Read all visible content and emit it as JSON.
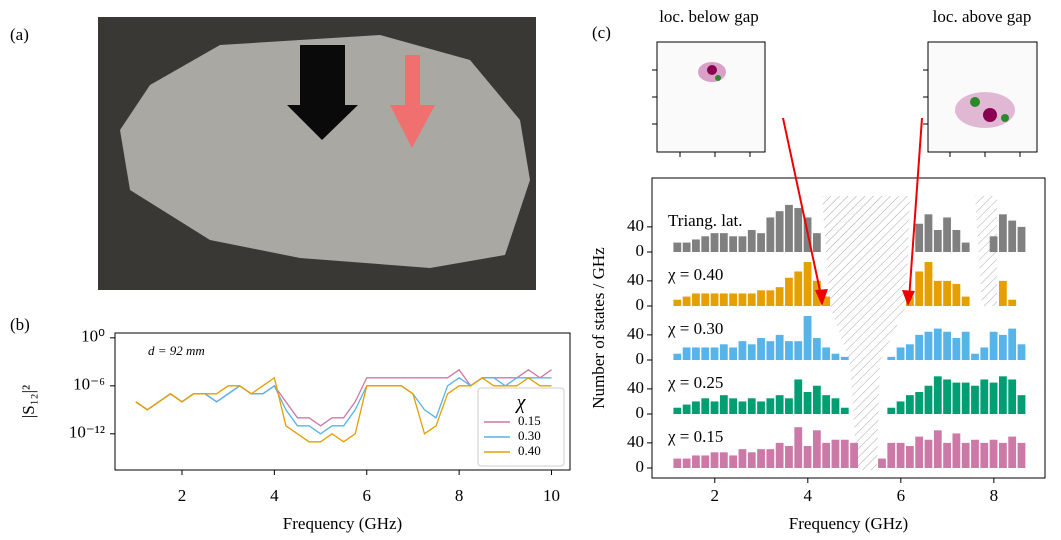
{
  "panel_labels": [
    "(a)",
    "(b)",
    "(c)"
  ],
  "insets": [
    {
      "title": "loc. below gap"
    },
    {
      "title": "loc. above gap"
    }
  ],
  "chart_data": [
    {
      "type": "line",
      "ylabel": "|S₁₂|²",
      "xlabel": "Frequency (GHz)",
      "annotation": "d = 92 mm",
      "log_y": true,
      "legend": "lower right",
      "legend_title": "χ",
      "xlim": [
        0.55,
        10.4
      ],
      "xticks": [
        2,
        4,
        6,
        8,
        10
      ],
      "ylim": [
        3e-17,
        4
      ],
      "yticks": [
        {
          "value": 1,
          "label": "10⁰"
        },
        {
          "value": 1e-06,
          "label": "10⁻⁶"
        },
        {
          "value": 1e-12,
          "label": "10⁻¹²"
        }
      ],
      "x": [
        1.0,
        1.25,
        1.5,
        1.75,
        2.0,
        2.25,
        2.5,
        2.75,
        3.0,
        3.25,
        3.5,
        3.75,
        4.0,
        4.25,
        4.5,
        4.75,
        5.0,
        5.25,
        5.5,
        5.75,
        6.0,
        6.25,
        6.5,
        6.75,
        7.0,
        7.25,
        7.5,
        7.75,
        8.0,
        8.25,
        8.5,
        8.75,
        9.0,
        9.25,
        9.5,
        9.75,
        10.0
      ],
      "series": [
        {
          "name": "0.15",
          "color": "#cc79a7",
          "values": [
            1e-08,
            1e-09,
            1e-08,
            1e-07,
            1e-08,
            1e-07,
            1e-07,
            1e-08,
            1e-07,
            1e-06,
            1e-07,
            1e-07,
            1e-06,
            1e-08,
            1e-10,
            1e-10,
            1e-11,
            1e-10,
            1e-10,
            1e-08,
            1e-05,
            1e-05,
            1e-05,
            1e-05,
            1e-05,
            1e-05,
            1e-05,
            1e-05,
            0.0001,
            1e-06,
            1e-05,
            1e-05,
            1e-05,
            1e-05,
            0.0001,
            1e-05,
            0.0001
          ]
        },
        {
          "name": "0.30",
          "color": "#56b4e9",
          "values": [
            1e-08,
            1e-09,
            1e-08,
            1e-07,
            1e-08,
            1e-07,
            1e-07,
            1e-08,
            1e-07,
            1e-06,
            1e-07,
            1e-07,
            1e-06,
            1e-09,
            1e-11,
            1e-11,
            1e-12,
            1e-11,
            1e-11,
            1e-09,
            1e-06,
            1e-06,
            1e-06,
            1e-06,
            1e-07,
            1e-09,
            1e-10,
            1e-06,
            1e-05,
            1e-06,
            1e-05,
            1e-05,
            1e-06,
            1e-05,
            1e-05,
            1e-05,
            1e-05
          ]
        },
        {
          "name": "0.40",
          "color": "#e69f00",
          "values": [
            1e-08,
            1e-09,
            1e-08,
            1e-07,
            1e-08,
            1e-07,
            1e-07,
            1e-07,
            1e-06,
            1e-06,
            1e-07,
            1e-06,
            1e-05,
            1e-11,
            1e-12,
            1e-13,
            1e-13,
            1e-12,
            1e-13,
            1e-12,
            1e-06,
            1e-06,
            1e-06,
            1e-06,
            1e-07,
            1e-12,
            1e-11,
            1e-07,
            1e-06,
            1e-06,
            1e-05,
            1e-06,
            1e-06,
            1e-06,
            1e-05,
            1e-06,
            1e-06
          ]
        }
      ]
    },
    {
      "type": "histogram",
      "ylabel": "Number of states / GHz",
      "xlabel": "Frequency (GHz)",
      "xlim": [
        0.65,
        9.1
      ],
      "xticks": [
        2,
        4,
        6,
        8
      ],
      "ylim": [
        0,
        86
      ],
      "yticks": [
        0,
        40
      ],
      "bins": [
        1.1,
        1.3,
        1.5,
        1.7,
        1.9,
        2.1,
        2.3,
        2.5,
        2.7,
        2.9,
        3.1,
        3.3,
        3.5,
        3.7,
        3.9,
        4.1,
        4.3,
        4.5,
        4.7,
        4.9,
        5.1,
        5.3,
        5.5,
        5.7,
        5.9,
        6.1,
        6.3,
        6.5,
        6.7,
        6.9,
        7.1,
        7.3,
        7.5,
        7.7,
        7.9,
        8.1,
        8.3,
        8.5,
        8.7
      ],
      "series": [
        {
          "name": "Triang. lat.",
          "color": "#808080",
          "values": [
            15,
            15,
            20,
            25,
            30,
            30,
            25,
            25,
            35,
            30,
            55,
            65,
            75,
            70,
            55,
            30,
            0,
            0,
            0,
            0,
            0,
            0,
            0,
            0,
            0,
            0,
            45,
            60,
            35,
            55,
            35,
            15,
            0,
            0,
            25,
            60,
            50,
            40
          ]
        },
        {
          "name": "χ = 0.40",
          "color": "#e69f00",
          "values": [
            10,
            15,
            20,
            20,
            20,
            20,
            20,
            20,
            20,
            25,
            25,
            30,
            45,
            55,
            70,
            40,
            15,
            0,
            0,
            0,
            0,
            0,
            0,
            0,
            0,
            15,
            55,
            70,
            40,
            40,
            35,
            15,
            0,
            0,
            0,
            40,
            10,
            0
          ]
        },
        {
          "name": "χ = 0.30",
          "color": "#56b4e9",
          "values": [
            10,
            20,
            20,
            20,
            20,
            25,
            20,
            30,
            25,
            35,
            30,
            40,
            30,
            30,
            70,
            35,
            20,
            10,
            5,
            0,
            0,
            0,
            0,
            5,
            20,
            25,
            40,
            45,
            50,
            45,
            35,
            45,
            10,
            20,
            45,
            40,
            50,
            25
          ]
        },
        {
          "name": "χ = 0.25",
          "color": "#009e73",
          "values": [
            10,
            15,
            20,
            25,
            20,
            30,
            25,
            20,
            25,
            20,
            25,
            30,
            25,
            55,
            35,
            45,
            30,
            25,
            10,
            0,
            0,
            0,
            0,
            10,
            20,
            30,
            35,
            45,
            60,
            55,
            50,
            50,
            45,
            55,
            50,
            60,
            55,
            30
          ]
        },
        {
          "name": "χ = 0.15",
          "color": "#cc79a7",
          "values": [
            15,
            15,
            20,
            20,
            25,
            25,
            20,
            30,
            25,
            30,
            30,
            40,
            35,
            65,
            35,
            60,
            40,
            45,
            45,
            40,
            0,
            0,
            15,
            40,
            40,
            35,
            50,
            45,
            60,
            40,
            55,
            40,
            45,
            40,
            45,
            40,
            50,
            40
          ]
        }
      ]
    }
  ]
}
